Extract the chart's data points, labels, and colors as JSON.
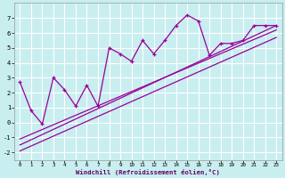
{
  "xlabel": "Windchill (Refroidissement éolien,°C)",
  "bg_color": "#c8eef0",
  "grid_color": "#aadddd",
  "line_color": "#990099",
  "xlim": [
    -0.5,
    23.5
  ],
  "ylim": [
    -2.5,
    8.0
  ],
  "xticks": [
    0,
    1,
    2,
    3,
    4,
    5,
    6,
    7,
    8,
    9,
    10,
    11,
    12,
    13,
    14,
    15,
    16,
    17,
    18,
    19,
    20,
    21,
    22,
    23
  ],
  "yticks": [
    -2,
    -1,
    0,
    1,
    2,
    3,
    4,
    5,
    6,
    7
  ],
  "zigzag_x": [
    0,
    1,
    2,
    3,
    4,
    5,
    6,
    7,
    8,
    9,
    10,
    11,
    12,
    13,
    14,
    15,
    16,
    17,
    18,
    19,
    20,
    21,
    22,
    23
  ],
  "zigzag_y": [
    2.7,
    0.8,
    -0.1,
    3.0,
    2.2,
    1.1,
    2.5,
    1.1,
    5.0,
    4.6,
    4.1,
    5.5,
    4.6,
    5.5,
    6.5,
    7.2,
    6.8,
    4.5,
    5.3,
    5.3,
    5.5,
    6.5,
    6.5,
    6.5
  ],
  "line1_x": [
    0,
    23
  ],
  "line1_y": [
    -1.5,
    6.5
  ],
  "line2_x": [
    0,
    23
  ],
  "line2_y": [
    -1.9,
    5.7
  ],
  "line3_x": [
    0,
    23
  ],
  "line3_y": [
    -1.1,
    6.2
  ]
}
